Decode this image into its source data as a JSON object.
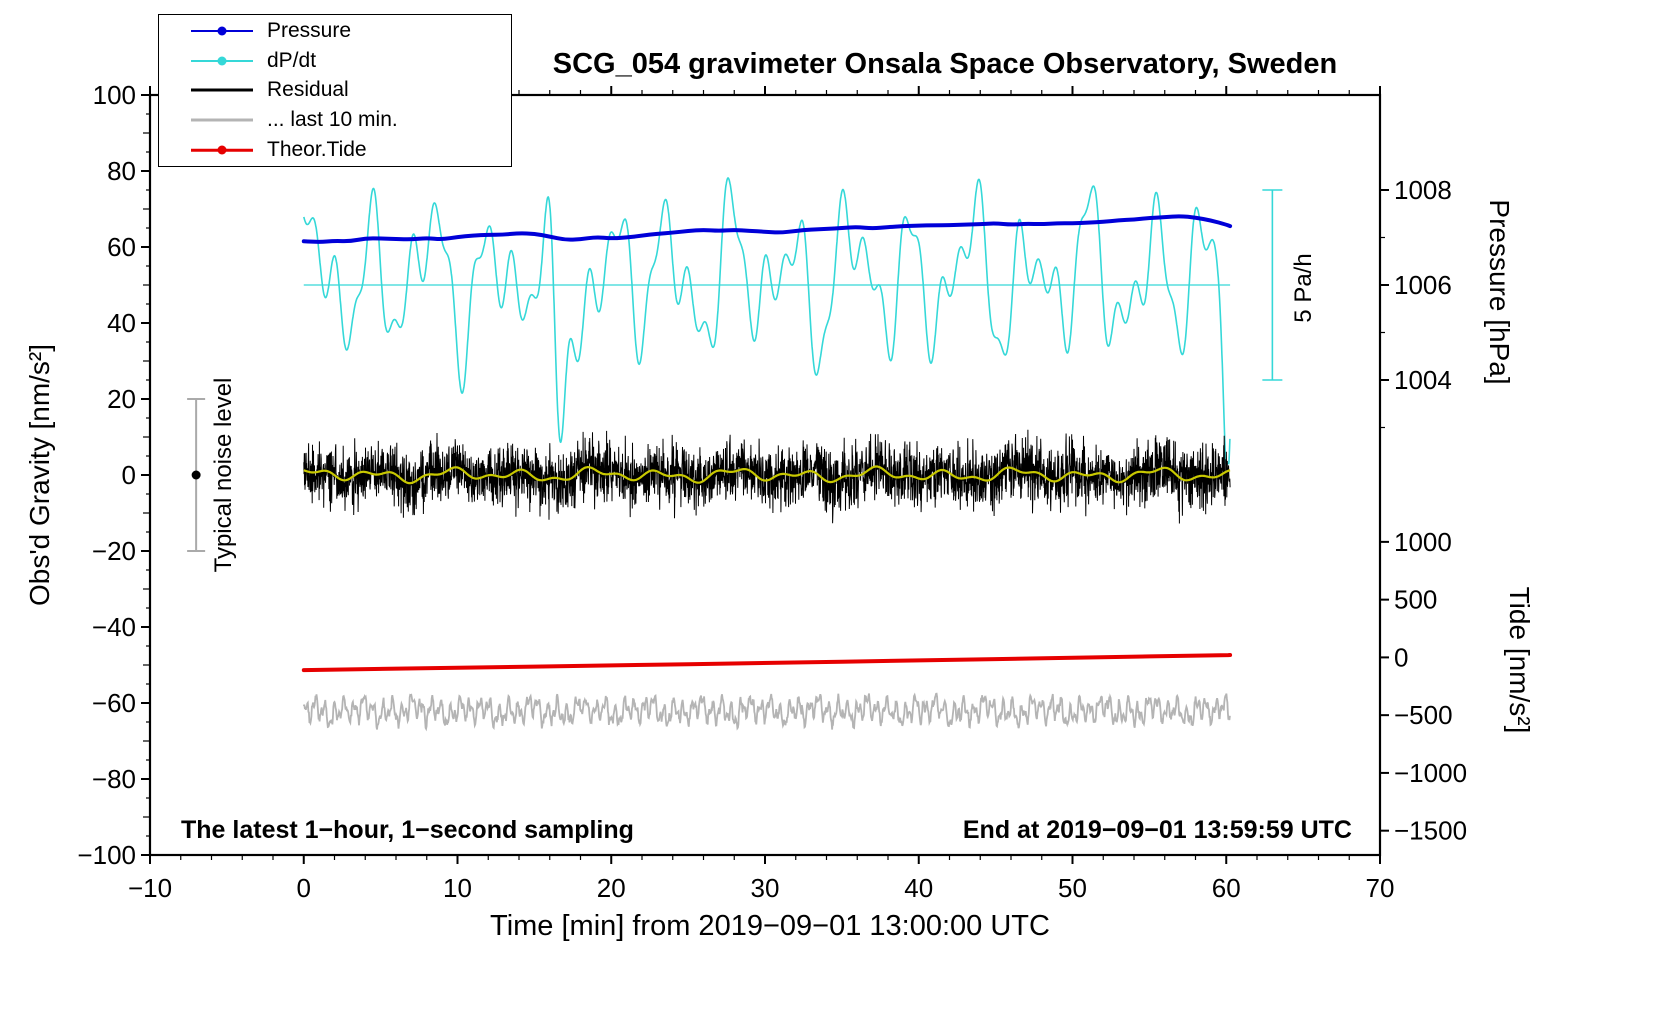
{
  "title": "SCG_054 gravimeter Onsala Space Observatory, Sweden",
  "xlabel": "Time [min] from 2019−09−01 13:00:00 UTC",
  "ylabel_left": "Obs'd Gravity [nm/s²]",
  "ylabel_pressure": "Pressure [hPa]",
  "ylabel_tide": "Tide [nm/s²]",
  "note_left": "The latest 1−hour, 1−second sampling",
  "note_right": "End at 2019−09−01 13:59:59 UTC",
  "annotations": {
    "noise_bar_label": "Typical noise level",
    "scale_bar_label": "5 Pa/h"
  },
  "legend": {
    "items": [
      {
        "label": "Pressure",
        "color": "#0000d8",
        "marker": true,
        "lw": 2
      },
      {
        "label": "dP/dt",
        "color": "#35d8d8",
        "marker": true,
        "lw": 2
      },
      {
        "label": "Residual",
        "color": "#000000",
        "marker": false,
        "lw": 3
      },
      {
        "label": "... last 10 min.",
        "color": "#b4b4b4",
        "marker": false,
        "lw": 3
      },
      {
        "label": "Theor.Tide",
        "color": "#e60000",
        "marker": true,
        "lw": 2.5
      }
    ]
  },
  "chart_data": {
    "type": "line",
    "title": "SCG_054 gravimeter Onsala Space Observatory, Sweden",
    "x_axis": {
      "label": "Time [min] from 2019-09-01 13:00:00 UTC",
      "range": [
        -10,
        70
      ],
      "major_ticks": [
        -10,
        0,
        10,
        20,
        30,
        40,
        50,
        60,
        70
      ],
      "minor_tick_step": 2
    },
    "left_axis": {
      "label": "Obs'd Gravity [nm/s2]",
      "range": [
        -100,
        100
      ],
      "major_ticks": [
        -100,
        -80,
        -60,
        -40,
        -20,
        0,
        20,
        40,
        60,
        80,
        100
      ],
      "minor_tick_step": 5
    },
    "pressure_axis": {
      "label": "Pressure [hPa]",
      "ticks": [
        1004,
        1006,
        1008
      ],
      "minor_ticks": [
        1003,
        1005,
        1007
      ],
      "ref_value": 1006,
      "gravity_at_ref": 50,
      "gravity_per_hpa": 12.5
    },
    "tide_axis": {
      "label": "Tide [nm/s2]",
      "ticks": [
        1000,
        500,
        0,
        -500,
        -1000,
        -1500
      ],
      "gravity_at_zero": -48,
      "gravity_per_unit": 0.0304
    },
    "x_data_range": [
      0,
      60.25
    ],
    "reference_line": {
      "gravity": 50,
      "pressure_value": 1006,
      "color": "#35d8d8"
    },
    "noise_bar": {
      "x": -7,
      "gravity_min": -20,
      "gravity_max": 20,
      "dot_gravity": 0,
      "color": "#aaaaaa",
      "label": "Typical noise level"
    },
    "scale_bar": {
      "x": 63,
      "gravity_min": 25,
      "gravity_max": 75,
      "color": "#35d8d8",
      "label": "5 Pa/h"
    },
    "series": {
      "pressure": {
        "name": "Pressure",
        "units": "hPa",
        "color": "#0000d8",
        "width": 4,
        "points": [
          [
            0,
            1006.92
          ],
          [
            1,
            1006.9
          ],
          [
            2,
            1006.93
          ],
          [
            3,
            1006.92
          ],
          [
            4,
            1006.98
          ],
          [
            5,
            1006.98
          ],
          [
            6,
            1006.97
          ],
          [
            7,
            1006.96
          ],
          [
            8,
            1006.99
          ],
          [
            9,
            1006.96
          ],
          [
            10,
            1007.01
          ],
          [
            11,
            1007.04
          ],
          [
            12,
            1007.06
          ],
          [
            13,
            1007.06
          ],
          [
            14,
            1007.09
          ],
          [
            15,
            1007.08
          ],
          [
            16,
            1007.02
          ],
          [
            17,
            1006.95
          ],
          [
            18,
            1006.96
          ],
          [
            19,
            1007.01
          ],
          [
            20,
            1006.98
          ],
          [
            21,
            1007.0
          ],
          [
            22,
            1007.04
          ],
          [
            23,
            1007.08
          ],
          [
            24,
            1007.1
          ],
          [
            25,
            1007.14
          ],
          [
            26,
            1007.16
          ],
          [
            27,
            1007.14
          ],
          [
            28,
            1007.16
          ],
          [
            29,
            1007.14
          ],
          [
            30,
            1007.12
          ],
          [
            31,
            1007.1
          ],
          [
            32,
            1007.14
          ],
          [
            33,
            1007.17
          ],
          [
            34,
            1007.18
          ],
          [
            35,
            1007.2
          ],
          [
            36,
            1007.22
          ],
          [
            37,
            1007.19
          ],
          [
            38,
            1007.22
          ],
          [
            39,
            1007.24
          ],
          [
            40,
            1007.25
          ],
          [
            41,
            1007.26
          ],
          [
            42,
            1007.26
          ],
          [
            43,
            1007.27
          ],
          [
            44,
            1007.28
          ],
          [
            45,
            1007.3
          ],
          [
            46,
            1007.27
          ],
          [
            47,
            1007.29
          ],
          [
            48,
            1007.28
          ],
          [
            49,
            1007.3
          ],
          [
            50,
            1007.3
          ],
          [
            51,
            1007.31
          ],
          [
            52,
            1007.33
          ],
          [
            53,
            1007.36
          ],
          [
            54,
            1007.38
          ],
          [
            55,
            1007.41
          ],
          [
            56,
            1007.43
          ],
          [
            57,
            1007.45
          ],
          [
            58,
            1007.42
          ],
          [
            59,
            1007.36
          ],
          [
            60,
            1007.27
          ],
          [
            60.25,
            1007.24
          ]
        ]
      },
      "dpdt": {
        "name": "dP/dt",
        "units": "Pa/h (scaled, 1006 hPa line = 0, span of scale bar = 5 Pa/h)",
        "color": "#35d8d8",
        "width": 1.6,
        "synth": {
          "seed": 11,
          "mean": 52,
          "step": 0.02,
          "components": [
            [
              3.9,
              13,
              0.8
            ],
            [
              2.33,
              9,
              2.1
            ],
            [
              1.27,
              6,
              4.0
            ],
            [
              7.1,
              4,
              1.0
            ]
          ],
          "dips": [
            [
              16.6,
              46,
              0.35
            ],
            [
              60.1,
              52,
              0.25
            ]
          ],
          "clip_min": 3,
          "clip_max": 84
        },
        "description": "Rapid oscillation between about 27 and 83 on the gravity scale with deep excursions near t=16.6 min and t=60 min"
      },
      "residual": {
        "name": "Residual",
        "units": "nm/s2",
        "color": "#000000",
        "width": 1,
        "synth": {
          "seed": 5,
          "std": 4,
          "clip": 13,
          "samples_per_min": 60
        },
        "description": "1-second residual noise band centred on 0, mostly within ±8, spikes to ±13"
      },
      "residual_mean": {
        "name": "Residual smoothed",
        "units": "nm/s2",
        "color": "#c8c800",
        "width": 2.2,
        "synth": {
          "mean": 0,
          "step": 0.05,
          "components": [
            [
              4.6,
              1.1,
              1.2
            ],
            [
              2.1,
              0.7,
              3.1
            ],
            [
              9.0,
              0.5,
              0.4
            ]
          ]
        },
        "description": "Yellow running mean of the residual, wiggling within about ±2 of zero"
      },
      "last10": {
        "name": "... last 10 min.",
        "units": "nm/s2 (offset display band)",
        "color": "#b4b4b4",
        "width": 1.8,
        "synth": {
          "seed": 23,
          "mean": -62,
          "step": 0.0333,
          "noise": 0.5,
          "components": [
            [
              0.63,
              2.1,
              0.5
            ],
            [
              0.29,
              1.4,
              2.2
            ],
            [
              1.55,
              1.2,
              4.1
            ],
            [
              3.7,
              0.8,
              1.7
            ]
          ]
        },
        "description": "Grey high-pass trace displayed around -62 on the gravity scale, amplitude about ±5"
      },
      "tide": {
        "name": "Theor.Tide",
        "units": "nm/s2 (tide axis)",
        "color": "#e60000",
        "width": 4,
        "points": [
          [
            0,
            -110
          ],
          [
            10,
            -90
          ],
          [
            20,
            -69
          ],
          [
            30,
            -48
          ],
          [
            40,
            -26
          ],
          [
            50,
            -3
          ],
          [
            60,
            20
          ],
          [
            60.25,
            20.5
          ]
        ],
        "description": "Theoretical tide rising almost linearly from about -110 to +20 nm/s2 during the hour"
      }
    }
  }
}
